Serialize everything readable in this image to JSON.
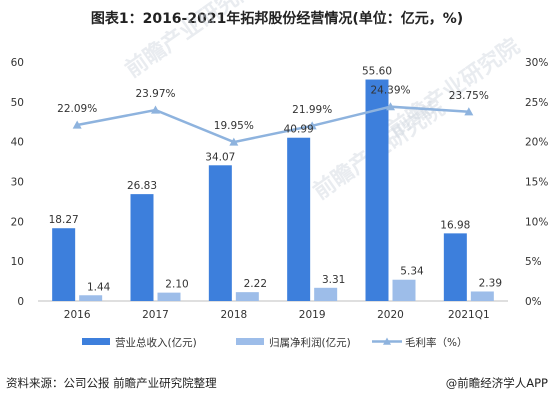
{
  "title": "图表1：2016-2021年拓邦股份经营情况(单位：亿元，%)",
  "source": "资料来源：公司公报 前瞻产业研究院整理",
  "brand": "@前瞻经济学人APP",
  "watermark": "前瞻产业研究院",
  "chart_data": {
    "type": "bar",
    "categories": [
      "2016",
      "2017",
      "2018",
      "2019",
      "2020",
      "2021Q1"
    ],
    "series": [
      {
        "name": "营业总收入(亿元)",
        "kind": "bar",
        "axis": "left",
        "color": "#3d7fdc",
        "values": [
          18.27,
          26.83,
          34.07,
          40.99,
          55.6,
          16.98
        ],
        "labels": [
          "18.27",
          "26.83",
          "34.07",
          "40.99",
          "55.60",
          "16.98"
        ]
      },
      {
        "name": "归属净利润(亿元)",
        "kind": "bar",
        "axis": "left",
        "color": "#9dbde9",
        "values": [
          1.44,
          2.1,
          2.22,
          3.31,
          5.34,
          2.39
        ],
        "labels": [
          "1.44",
          "2.10",
          "2.22",
          "3.31",
          "5.34",
          "2.39"
        ]
      },
      {
        "name": "毛利率（%）",
        "kind": "line",
        "axis": "right",
        "color": "#8eb3de",
        "values": [
          22.09,
          23.97,
          19.95,
          21.99,
          24.39,
          23.75
        ],
        "labels": [
          "22.09%",
          "23.97%",
          "19.95%",
          "21.99%",
          "24.39%",
          "23.75%"
        ]
      }
    ],
    "yleft": {
      "min": 0,
      "max": 60,
      "ticks": [
        "0",
        "10",
        "20",
        "30",
        "40",
        "50",
        "60"
      ]
    },
    "yright": {
      "min": 0,
      "max": 30,
      "ticks": [
        "0%",
        "5%",
        "10%",
        "15%",
        "20%",
        "25%",
        "30%"
      ]
    },
    "grid": false,
    "legend_position": "bottom"
  }
}
